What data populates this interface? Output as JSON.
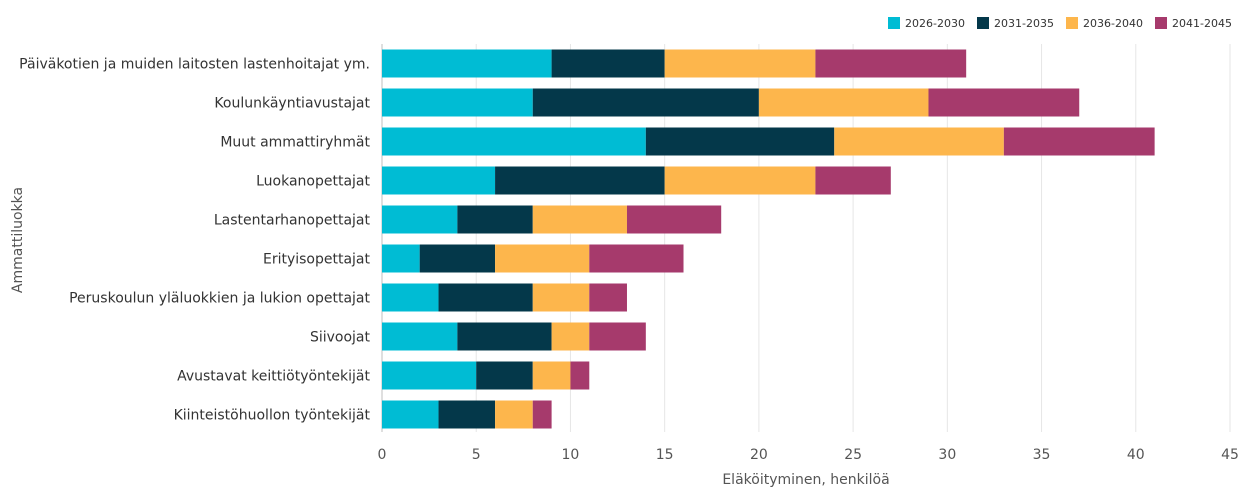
{
  "chart_data": {
    "type": "bar",
    "orientation": "horizontal",
    "stacked": true,
    "xlabel": "Eläköityminen, henkilöä",
    "ylabel": "Ammattiluokka",
    "xlim": [
      0,
      45
    ],
    "xticks": [
      0,
      5,
      10,
      15,
      20,
      25,
      30,
      35,
      40,
      45
    ],
    "grid": true,
    "legend_position": "top-right",
    "categories": [
      "Päiväkotien ja muiden laitosten lastenhoitajat ym.",
      "Koulunkäyntiavustajat",
      "Muut ammattiryhmät",
      "Luokanopettajat",
      "Lastentarhanopettajat",
      "Erityisopettajat",
      "Peruskoulun yläluokkien ja lukion opettajat",
      "Siivoojat",
      "Avustavat keittiötyöntekijät",
      "Kiinteistöhuollon työntekijät"
    ],
    "series": [
      {
        "name": "2026-2030",
        "color": "#00BCD4",
        "values": [
          9,
          8,
          14,
          6,
          4,
          2,
          3,
          4,
          5,
          3
        ]
      },
      {
        "name": "2031-2035",
        "color": "#04384A",
        "values": [
          6,
          12,
          10,
          9,
          4,
          4,
          5,
          5,
          3,
          3
        ]
      },
      {
        "name": "2036-2040",
        "color": "#FDB64C",
        "values": [
          8,
          9,
          9,
          8,
          5,
          5,
          3,
          2,
          2,
          2
        ]
      },
      {
        "name": "2041-2045",
        "color": "#A63A6C",
        "values": [
          8,
          8,
          8,
          4,
          5,
          5,
          2,
          3,
          1,
          1
        ]
      }
    ]
  }
}
